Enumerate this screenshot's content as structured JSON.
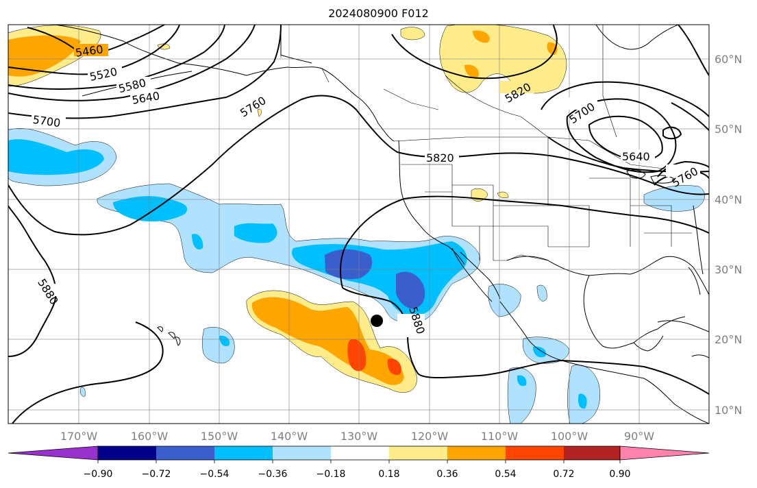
{
  "title": "2024080900 F012",
  "axes": {
    "lon_labels": [
      "170°W",
      "160°W",
      "150°W",
      "140°W",
      "130°W",
      "120°W",
      "110°W",
      "100°W",
      "90°W"
    ],
    "lat_labels": [
      "60°N",
      "50°N",
      "40°N",
      "30°N",
      "20°N",
      "10°N"
    ],
    "label_color": "#7f7f7f"
  },
  "contours": {
    "labels": [
      "5460",
      "5520",
      "5580",
      "5640",
      "5700",
      "5760",
      "5820",
      "5880",
      "5880",
      "5820",
      "5700",
      "5640",
      "5760"
    ]
  },
  "colorbar": {
    "ticks": [
      "−0.90",
      "−0.72",
      "−0.54",
      "−0.36",
      "−0.18",
      "0.18",
      "0.36",
      "0.54",
      "0.72",
      "0.90"
    ],
    "colors": [
      "#9932cc",
      "#00008b",
      "#3a5fcd",
      "#00bfff",
      "#b0e2ff",
      "#ffffff",
      "#ffec8b",
      "#ffa500",
      "#ff4500",
      "#b22222",
      "#ff82ab"
    ]
  },
  "fill_colors": {
    "pos1": "#ffec8b",
    "pos2": "#ffa500",
    "pos3": "#ff4500",
    "neg1": "#b0e2ff",
    "neg2": "#00bfff",
    "neg3": "#3a5fcd"
  },
  "marker": "storm-center-dot"
}
